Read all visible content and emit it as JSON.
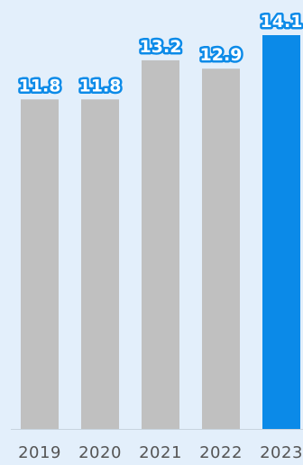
{
  "chart_data": {
    "type": "bar",
    "categories": [
      "2019",
      "2020",
      "2021",
      "2022",
      "2023"
    ],
    "values": [
      11.8,
      11.8,
      13.2,
      12.9,
      14.1
    ],
    "value_labels": [
      "11.8",
      "11.8",
      "13.2",
      "12.9",
      "14.1"
    ],
    "title": "",
    "xlabel": "",
    "ylabel": "",
    "ylim": [
      0,
      14.1
    ],
    "grid": false,
    "highlight_index": 4,
    "colors": {
      "bar": "#c0c0c0",
      "highlight_bar": "#0b8ae8",
      "label_fill": "#ffffff",
      "label_stroke": "#0b8ae8",
      "baseline": "#c8d4df",
      "tick_text": "#555555"
    }
  }
}
